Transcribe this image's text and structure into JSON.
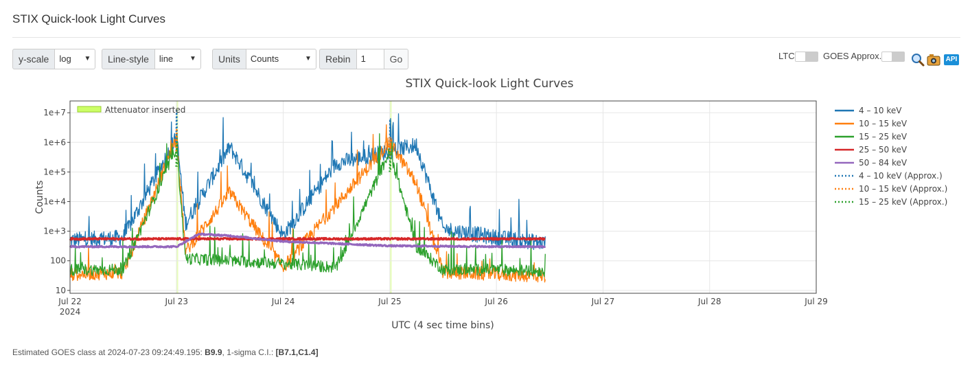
{
  "page": {
    "title": "STIX Quick-look Light Curves"
  },
  "controls": {
    "yscale": {
      "label": "y-scale",
      "value": "log"
    },
    "linestyle": {
      "label": "Line-style",
      "value": "line"
    },
    "units": {
      "label": "Units",
      "value": "Counts"
    },
    "rebin": {
      "label": "Rebin",
      "value": "1",
      "button": "Go"
    },
    "ltc": {
      "label": "LTC",
      "on": false
    },
    "goes": {
      "label": "GOES Approx.",
      "on": false
    },
    "icons": [
      "zoom-icon",
      "camera-icon",
      "api-icon"
    ],
    "api_label": "API"
  },
  "chart_data": {
    "type": "line",
    "title": "STIX Quick-look Light Curves",
    "xlabel": "UTC (4 sec time bins)",
    "ylabel": "Counts",
    "yscale": "log",
    "ylim": [
      8,
      25000000
    ],
    "xlim": [
      "2024-07-22T00:00",
      "2024-07-29T00:00"
    ],
    "x_ticks": [
      "Jul 22",
      "Jul 23",
      "Jul 24",
      "Jul 25",
      "Jul 26",
      "Jul 27",
      "Jul 28",
      "Jul 29"
    ],
    "x_tick_year": "2024",
    "y_ticks": [
      "10",
      "100",
      "1e+3",
      "1e+4",
      "1e+5",
      "1e+6",
      "1e+7"
    ],
    "grid": true,
    "legend_position": "right",
    "annotation": {
      "label": "Attenuator inserted",
      "color": "#ccff66",
      "intervals": [
        [
          "2024-07-22T23:53",
          "2024-07-23T00:08"
        ],
        [
          "2024-07-24T23:57",
          "2024-07-25T00:10"
        ]
      ]
    },
    "data_end": "2024-07-26T11:00",
    "series": [
      {
        "name": "4 – 10 keV",
        "color": "#1f77b4",
        "dash": "solid",
        "x": [
          "2024-07-22T00:00",
          "2024-07-22T12:00",
          "2024-07-23T00:00",
          "2024-07-23T02:00",
          "2024-07-23T12:00",
          "2024-07-24T00:00",
          "2024-07-24T12:00",
          "2024-07-25T00:00",
          "2024-07-25T06:00",
          "2024-07-25T12:00",
          "2024-07-26T00:00",
          "2024-07-26T11:00"
        ],
        "y": [
          500,
          600,
          1500000,
          1800,
          700000,
          700,
          200000,
          500000,
          800000,
          1200,
          600,
          400
        ]
      },
      {
        "name": "10 – 15 keV",
        "color": "#ff7f0e",
        "dash": "solid",
        "x": [
          "2024-07-22T00:00",
          "2024-07-22T12:00",
          "2024-07-23T00:00",
          "2024-07-23T02:00",
          "2024-07-23T12:00",
          "2024-07-24T00:00",
          "2024-07-24T12:00",
          "2024-07-25T00:00",
          "2024-07-25T06:00",
          "2024-07-25T12:00",
          "2024-07-26T00:00",
          "2024-07-26T11:00"
        ],
        "y": [
          35,
          40,
          1500000,
          200,
          20000,
          60,
          8000,
          1000000,
          40000,
          40,
          35,
          30
        ]
      },
      {
        "name": "15 – 25 keV",
        "color": "#2ca02c",
        "dash": "solid",
        "x": [
          "2024-07-22T00:00",
          "2024-07-22T12:00",
          "2024-07-23T00:00",
          "2024-07-23T02:00",
          "2024-07-23T12:00",
          "2024-07-24T00:00",
          "2024-07-24T12:00",
          "2024-07-25T00:00",
          "2024-07-25T06:00",
          "2024-07-25T12:00",
          "2024-07-26T00:00",
          "2024-07-26T11:00"
        ],
        "y": [
          50,
          50,
          700000,
          120,
          100,
          80,
          60,
          500000,
          300,
          50,
          50,
          45
        ]
      },
      {
        "name": "25 – 50 keV",
        "color": "#d62728",
        "dash": "solid",
        "x": [
          "2024-07-22T00:00",
          "2024-07-23T00:00",
          "2024-07-24T00:00",
          "2024-07-25T00:00",
          "2024-07-26T00:00",
          "2024-07-26T11:00"
        ],
        "y": [
          550,
          550,
          550,
          550,
          550,
          550
        ]
      },
      {
        "name": "50 – 84 keV",
        "color": "#9467bd",
        "dash": "solid",
        "x": [
          "2024-07-22T00:00",
          "2024-07-23T00:00",
          "2024-07-23T05:00",
          "2024-07-23T12:00",
          "2024-07-24T00:00",
          "2024-07-25T00:00",
          "2024-07-26T00:00",
          "2024-07-26T11:00"
        ],
        "y": [
          300,
          300,
          800,
          700,
          450,
          320,
          300,
          300
        ]
      },
      {
        "name": "4 – 10 keV (Approx.)",
        "color": "#1f77b4",
        "dash": "dot",
        "x": [
          "2024-07-22T23:54",
          "2024-07-23T00:00",
          "2024-07-23T00:06",
          "2024-07-24T23:58",
          "2024-07-25T00:04",
          "2024-07-25T00:10"
        ],
        "y": [
          1000000,
          12000000,
          1500000,
          800000,
          6000000,
          1000000
        ]
      },
      {
        "name": "10 – 15 keV (Approx.)",
        "color": "#ff7f0e",
        "dash": "dot",
        "x": [
          "2024-07-22T23:54",
          "2024-07-23T00:00",
          "2024-07-23T00:06",
          "2024-07-24T23:58",
          "2024-07-25T00:04",
          "2024-07-25T00:10"
        ],
        "y": [
          500000,
          3000000,
          600000,
          300000,
          1500000,
          300000
        ]
      },
      {
        "name": "15 – 25 keV (Approx.)",
        "color": "#2ca02c",
        "dash": "dot",
        "x": [
          "2024-07-22T23:54",
          "2024-07-23T00:00",
          "2024-07-23T00:06",
          "2024-07-24T23:58",
          "2024-07-25T00:04",
          "2024-07-25T00:10"
        ],
        "y": [
          150000,
          1000000,
          150000,
          100000,
          500000,
          100000
        ]
      }
    ]
  },
  "footer": {
    "prefix": "Estimated GOES class at 2024-07-23 09:24:49.195: ",
    "goes_class": "B9.9",
    "ci_label": ", 1-sigma C.I.: ",
    "ci_value": "[B7.1,C1.4]"
  }
}
